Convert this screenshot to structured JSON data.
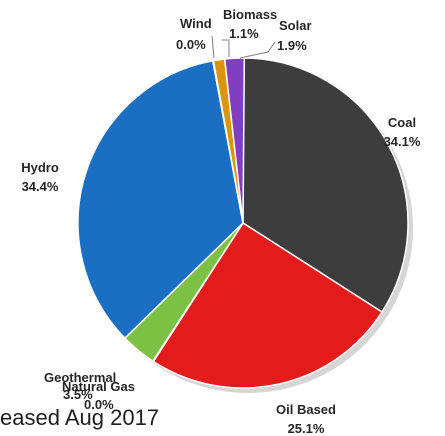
{
  "chart_data": {
    "type": "pie",
    "title": "",
    "slices": [
      {
        "name": "Coal",
        "value": 34.1,
        "label": "34.1%",
        "color": "#3d3d3d"
      },
      {
        "name": "Oil Based",
        "value": 25.1,
        "label": "25.1%",
        "color": "#e31b1b"
      },
      {
        "name": "Natural Gas",
        "value": 0.0,
        "label": "0.0%",
        "color": "#c0504d"
      },
      {
        "name": "Geothermal",
        "value": 3.5,
        "label": "3.5%",
        "color": "#7dc144"
      },
      {
        "name": "Hydro",
        "value": 34.4,
        "label": "34.4%",
        "color": "#1b6fc2"
      },
      {
        "name": "Wind",
        "value": 0.0,
        "label": "0.0%",
        "color": "#9bbb59"
      },
      {
        "name": "Biomass",
        "value": 1.1,
        "label": "1.1%",
        "color": "#d8950f"
      },
      {
        "name": "Solar",
        "value": 1.9,
        "label": "1.9%",
        "color": "#7f3fbf"
      }
    ]
  },
  "caption": "eased Aug 2017"
}
